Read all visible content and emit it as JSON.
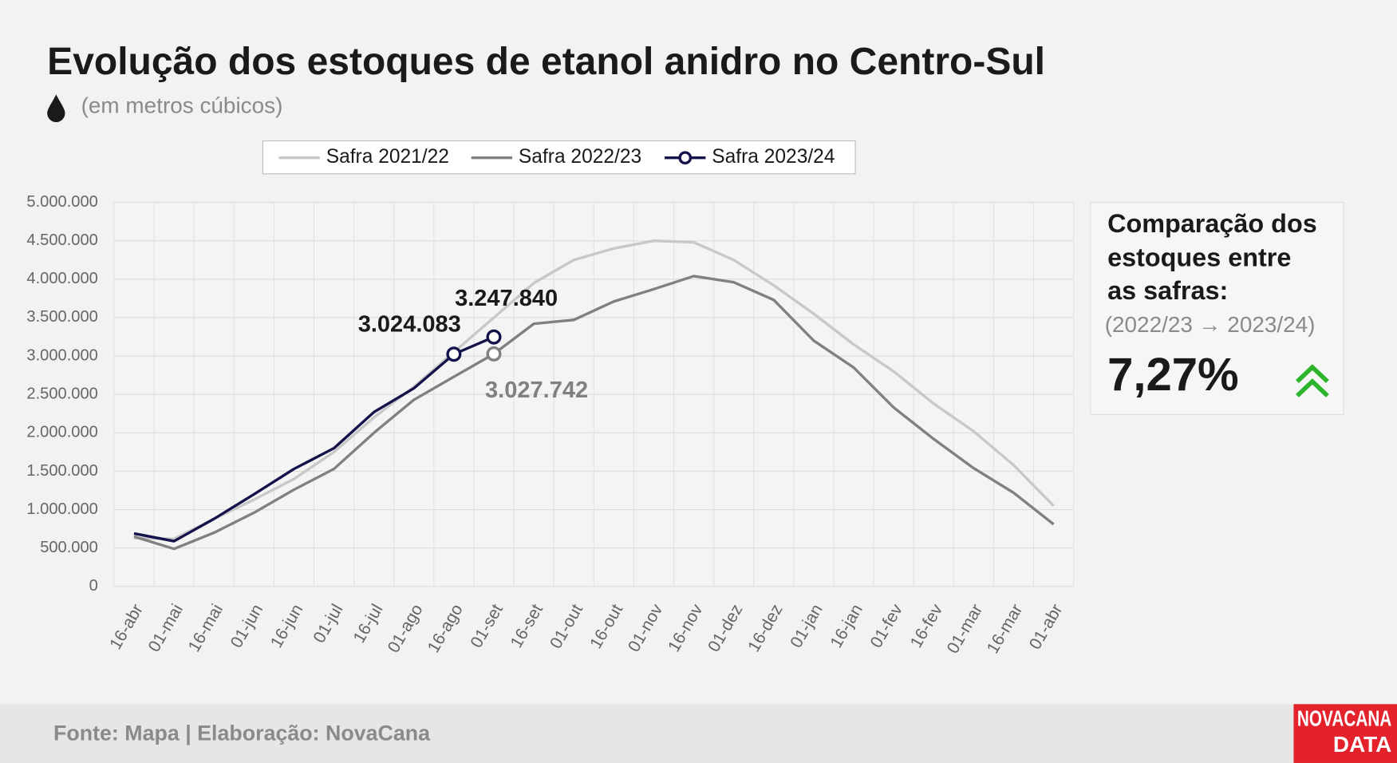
{
  "chart_data": {
    "type": "line",
    "title": "Evolução dos estoques de etanol anidro no Centro-Sul",
    "subtitle": "(em metros cúbicos)",
    "categories": [
      "16-abr",
      "01-mai",
      "16-mai",
      "01-jun",
      "16-jun",
      "01-jul",
      "16-jul",
      "01-ago",
      "16-ago",
      "01-set",
      "16-set",
      "01-out",
      "16-out",
      "01-nov",
      "16-nov",
      "01-dez",
      "16-dez",
      "01-jan",
      "16-jan",
      "01-fev",
      "16-fev",
      "01-mar",
      "16-mar",
      "01-abr"
    ],
    "series": [
      {
        "name": "Safra 2021/22",
        "color": "#c8c8c8",
        "values": [
          630000,
          620000,
          880000,
          1130000,
          1400000,
          1750000,
          2200000,
          2600000,
          3050000,
          3500000,
          3950000,
          4250000,
          4400000,
          4500000,
          4480000,
          4250000,
          3920000,
          3550000,
          3150000,
          2800000,
          2380000,
          2020000,
          1580000,
          1050000
        ]
      },
      {
        "name": "Safra 2022/23",
        "color": "#808080",
        "values": [
          650000,
          490000,
          700000,
          960000,
          1260000,
          1530000,
          2000000,
          2430000,
          2730000,
          3027742,
          3420000,
          3470000,
          3710000,
          3870000,
          4040000,
          3960000,
          3730000,
          3200000,
          2850000,
          2330000,
          1920000,
          1540000,
          1220000,
          810000
        ],
        "value_labels": [
          null,
          null,
          null,
          null,
          null,
          null,
          null,
          null,
          null,
          "3.027.742",
          null,
          null,
          null,
          null,
          null,
          null,
          null,
          null,
          null,
          null,
          null,
          null,
          null,
          null
        ]
      },
      {
        "name": "Safra 2023/24",
        "color": "#14124a",
        "values": [
          690000,
          590000,
          880000,
          1200000,
          1530000,
          1800000,
          2270000,
          2580000,
          3024083,
          3247840,
          null,
          null,
          null,
          null,
          null,
          null,
          null,
          null,
          null,
          null,
          null,
          null,
          null,
          null
        ],
        "value_labels": [
          null,
          null,
          null,
          null,
          null,
          null,
          null,
          null,
          "3.024.083",
          "3.247.840",
          null,
          null,
          null,
          null,
          null,
          null,
          null,
          null,
          null,
          null,
          null,
          null,
          null,
          null
        ]
      }
    ],
    "ylim": [
      0,
      5000000
    ],
    "yticks": [
      0,
      {
        "value": 500000,
        "label": "500.000"
      },
      {
        "value": 1000000,
        "label": "1.000.000"
      },
      {
        "value": 1500000,
        "label": "1.500.000"
      },
      {
        "value": 2000000,
        "label": "2.000.000"
      },
      {
        "value": 2500000,
        "label": "2.500.000"
      },
      {
        "value": 3000000,
        "label": "3.000.000"
      },
      {
        "value": 3500000,
        "label": "3.500.000"
      },
      {
        "value": 4000000,
        "label": "4.000.000"
      },
      {
        "value": 4500000,
        "label": "4.500.000"
      },
      {
        "value": 5000000,
        "label": "5.000.000"
      }
    ],
    "grid": true,
    "legend": "top"
  },
  "panel": {
    "title_lines": [
      "Comparação dos",
      "estoques entre",
      "as safras:"
    ],
    "subtitle": "(2022/23 → 2023/24)",
    "value": "7,27%"
  },
  "footer": {
    "source": "Fonte: Mapa | Elaboração: NovaCana",
    "logo": [
      "NOVACANA",
      "DATA"
    ]
  }
}
